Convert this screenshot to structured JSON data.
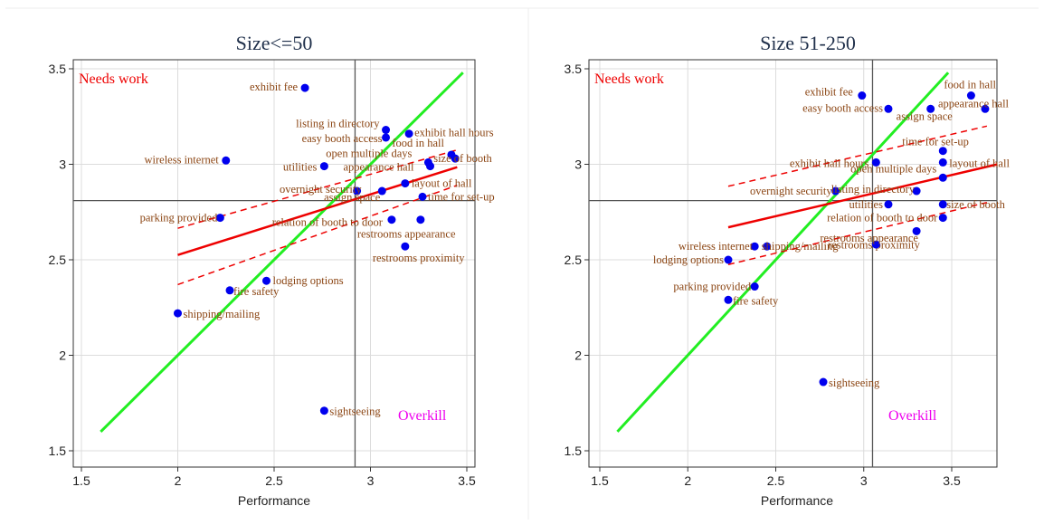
{
  "colors": {
    "point": "#0000ee",
    "label": "#8b4513",
    "fit": "#ee0000",
    "diagonal": "#22ee22",
    "needs_work": "#ee0000",
    "overkill": "#ee00ee",
    "grid": "#dcdcdc",
    "crosshair": "#555555"
  },
  "chart_data": [
    {
      "type": "scatter",
      "title": "Size<=50",
      "xlabel": "Performance",
      "ylabel": "",
      "xlim": [
        1.42,
        3.58
      ],
      "ylim": [
        1.42,
        3.57
      ],
      "xticks": [
        "1.5",
        "2",
        "2.5",
        "3",
        "3.5"
      ],
      "yticks": [
        "1.5",
        "2",
        "2.5",
        "3",
        "3.5"
      ],
      "grid": true,
      "quadrant_labels": {
        "top_left": "Needs work",
        "bottom_right": "Overkill"
      },
      "reference_lines": {
        "x": 2.92,
        "y": 2.81
      },
      "diagonal": {
        "from": 1.6,
        "to": 3.48
      },
      "fit_line": {
        "x": [
          2.0,
          3.45
        ],
        "y": [
          2.525,
          2.985
        ]
      },
      "ci_upper": {
        "x": [
          2.0,
          3.45
        ],
        "y": [
          2.665,
          3.075
        ]
      },
      "ci_lower": {
        "x": [
          2.0,
          3.45
        ],
        "y": [
          2.37,
          2.89
        ]
      },
      "points": [
        {
          "label": "exhibit fee",
          "x": 2.66,
          "y": 3.4
        },
        {
          "label": "listing in directory",
          "x": 3.08,
          "y": 3.18
        },
        {
          "label": "easy booth access",
          "x": 3.08,
          "y": 3.14
        },
        {
          "label": "exhibit hall hours",
          "x": 3.2,
          "y": 3.16
        },
        {
          "label": "wireless internet",
          "x": 2.25,
          "y": 3.02
        },
        {
          "label": "food in hall",
          "x": 3.42,
          "y": 3.05
        },
        {
          "label": "open multiple days",
          "x": 3.3,
          "y": 3.01
        },
        {
          "label": "utilities",
          "x": 2.76,
          "y": 2.99
        },
        {
          "label": "appearance hall",
          "x": 3.31,
          "y": 2.99
        },
        {
          "label": "size of booth",
          "x": 3.44,
          "y": 3.03
        },
        {
          "label": "layout of hall",
          "x": 3.18,
          "y": 2.9
        },
        {
          "label": "overnight security",
          "x": 2.93,
          "y": 2.86
        },
        {
          "label": "assign space",
          "x": 3.06,
          "y": 2.86
        },
        {
          "label": "time for set-up",
          "x": 3.27,
          "y": 2.83
        },
        {
          "label": "parking provided",
          "x": 2.22,
          "y": 2.72
        },
        {
          "label": "relation of booth to door",
          "x": 3.11,
          "y": 2.71
        },
        {
          "label": "restrooms appearance",
          "x": 3.26,
          "y": 2.71
        },
        {
          "label": "restrooms proximity",
          "x": 3.18,
          "y": 2.57
        },
        {
          "label": "lodging options",
          "x": 2.46,
          "y": 2.39
        },
        {
          "label": "fire safety",
          "x": 2.27,
          "y": 2.34
        },
        {
          "label": "shipping/mailing",
          "x": 2.0,
          "y": 2.22
        },
        {
          "label": "sightseeing",
          "x": 2.76,
          "y": 1.71
        }
      ]
    },
    {
      "type": "scatter",
      "title": "Size 51-250",
      "xlabel": "Performance",
      "ylabel": "",
      "xlim": [
        1.42,
        3.76
      ],
      "ylim": [
        1.42,
        3.57
      ],
      "xticks": [
        "1.5",
        "2",
        "2.5",
        "3",
        "3.5"
      ],
      "yticks": [
        "1.5",
        "2",
        "2.5",
        "3",
        "3.5"
      ],
      "grid": true,
      "quadrant_labels": {
        "top_left": "Needs work",
        "bottom_right": "Overkill"
      },
      "reference_lines": {
        "x": 3.05,
        "y": 2.81
      },
      "diagonal": {
        "from": 1.6,
        "to": 3.48
      },
      "fit_line": {
        "x": [
          2.23,
          3.76
        ],
        "y": [
          2.67,
          3.0
        ]
      },
      "ci_upper": {
        "x": [
          2.23,
          3.7
        ],
        "y": [
          2.885,
          3.2
        ]
      },
      "ci_lower": {
        "x": [
          2.23,
          3.7
        ],
        "y": [
          2.475,
          2.8
        ]
      },
      "points": [
        {
          "label": "exhibit fee",
          "x": 2.99,
          "y": 3.36
        },
        {
          "label": "food in hall",
          "x": 3.61,
          "y": 3.36
        },
        {
          "label": "appearance hall",
          "x": 3.69,
          "y": 3.29
        },
        {
          "label": "easy booth access",
          "x": 3.14,
          "y": 3.29
        },
        {
          "label": "assign space",
          "x": 3.38,
          "y": 3.29
        },
        {
          "label": "time for set-up",
          "x": 3.45,
          "y": 3.07
        },
        {
          "label": "exhibit hall hours",
          "x": 3.07,
          "y": 3.01
        },
        {
          "label": "layout of hall",
          "x": 3.45,
          "y": 3.01
        },
        {
          "label": "open multiple days",
          "x": 3.45,
          "y": 2.93
        },
        {
          "label": "overnight security",
          "x": 2.84,
          "y": 2.86
        },
        {
          "label": "listing in directory",
          "x": 3.3,
          "y": 2.86
        },
        {
          "label": "utilities",
          "x": 3.14,
          "y": 2.79
        },
        {
          "label": "size of booth",
          "x": 3.45,
          "y": 2.79
        },
        {
          "label": "relation of booth to door",
          "x": 3.45,
          "y": 2.72
        },
        {
          "label": "restrooms proximity",
          "x": 3.3,
          "y": 2.65
        },
        {
          "label": "wireless internet",
          "x": 2.38,
          "y": 2.57
        },
        {
          "label": "shipping/mailing",
          "x": 2.45,
          "y": 2.57
        },
        {
          "label": "restrooms appearance",
          "x": 3.07,
          "y": 2.58
        },
        {
          "label": "lodging options",
          "x": 2.23,
          "y": 2.5
        },
        {
          "label": "parking provided",
          "x": 2.38,
          "y": 2.36
        },
        {
          "label": "fire safety",
          "x": 2.23,
          "y": 2.29
        },
        {
          "label": "sightseeing",
          "x": 2.77,
          "y": 1.86
        }
      ]
    }
  ]
}
